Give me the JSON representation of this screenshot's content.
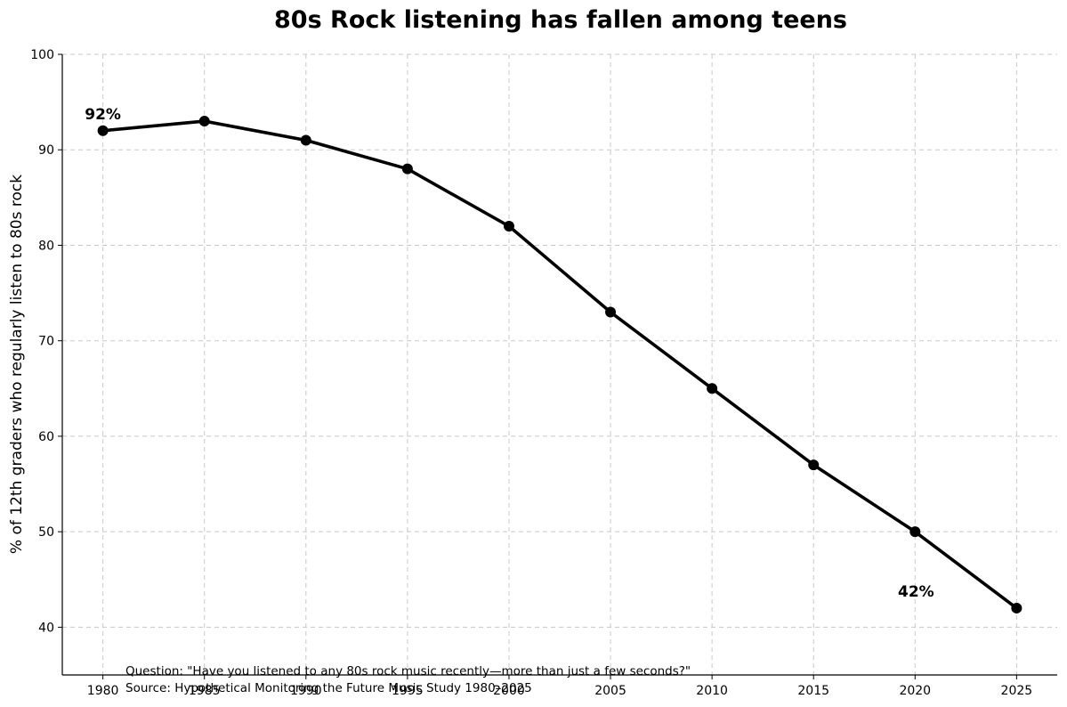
{
  "chart_data": {
    "type": "line",
    "title": "80s Rock listening has fallen among teens",
    "xlabel": "",
    "ylabel": "% of 12th graders who regularly listen to 80s rock",
    "x": [
      1980,
      1985,
      1990,
      1995,
      2000,
      2005,
      2010,
      2015,
      2020,
      2025
    ],
    "xlim": [
      1978,
      2027
    ],
    "ylim": [
      35,
      100
    ],
    "yticks": [
      40,
      50,
      60,
      70,
      80,
      90,
      100
    ],
    "xticks": [
      1980,
      1985,
      1990,
      1995,
      2000,
      2005,
      2010,
      2015,
      2020,
      2025
    ],
    "grid": true,
    "series": [
      {
        "color": "#000000",
        "marker": "circle",
        "values": [
          92,
          93,
          91,
          88,
          82,
          73,
          65,
          57,
          50,
          42
        ]
      }
    ],
    "annotations": [
      {
        "text": "92%",
        "x": 1980,
        "y": 92
      },
      {
        "text": "42%",
        "x": 2025,
        "y": 42
      }
    ],
    "notes": [
      "Question: \"Have you listened to any 80s rock music recently—more than just a few seconds?\"",
      "Source: Hypothetical Monitoring the Future Music Study 1980–2025"
    ]
  }
}
